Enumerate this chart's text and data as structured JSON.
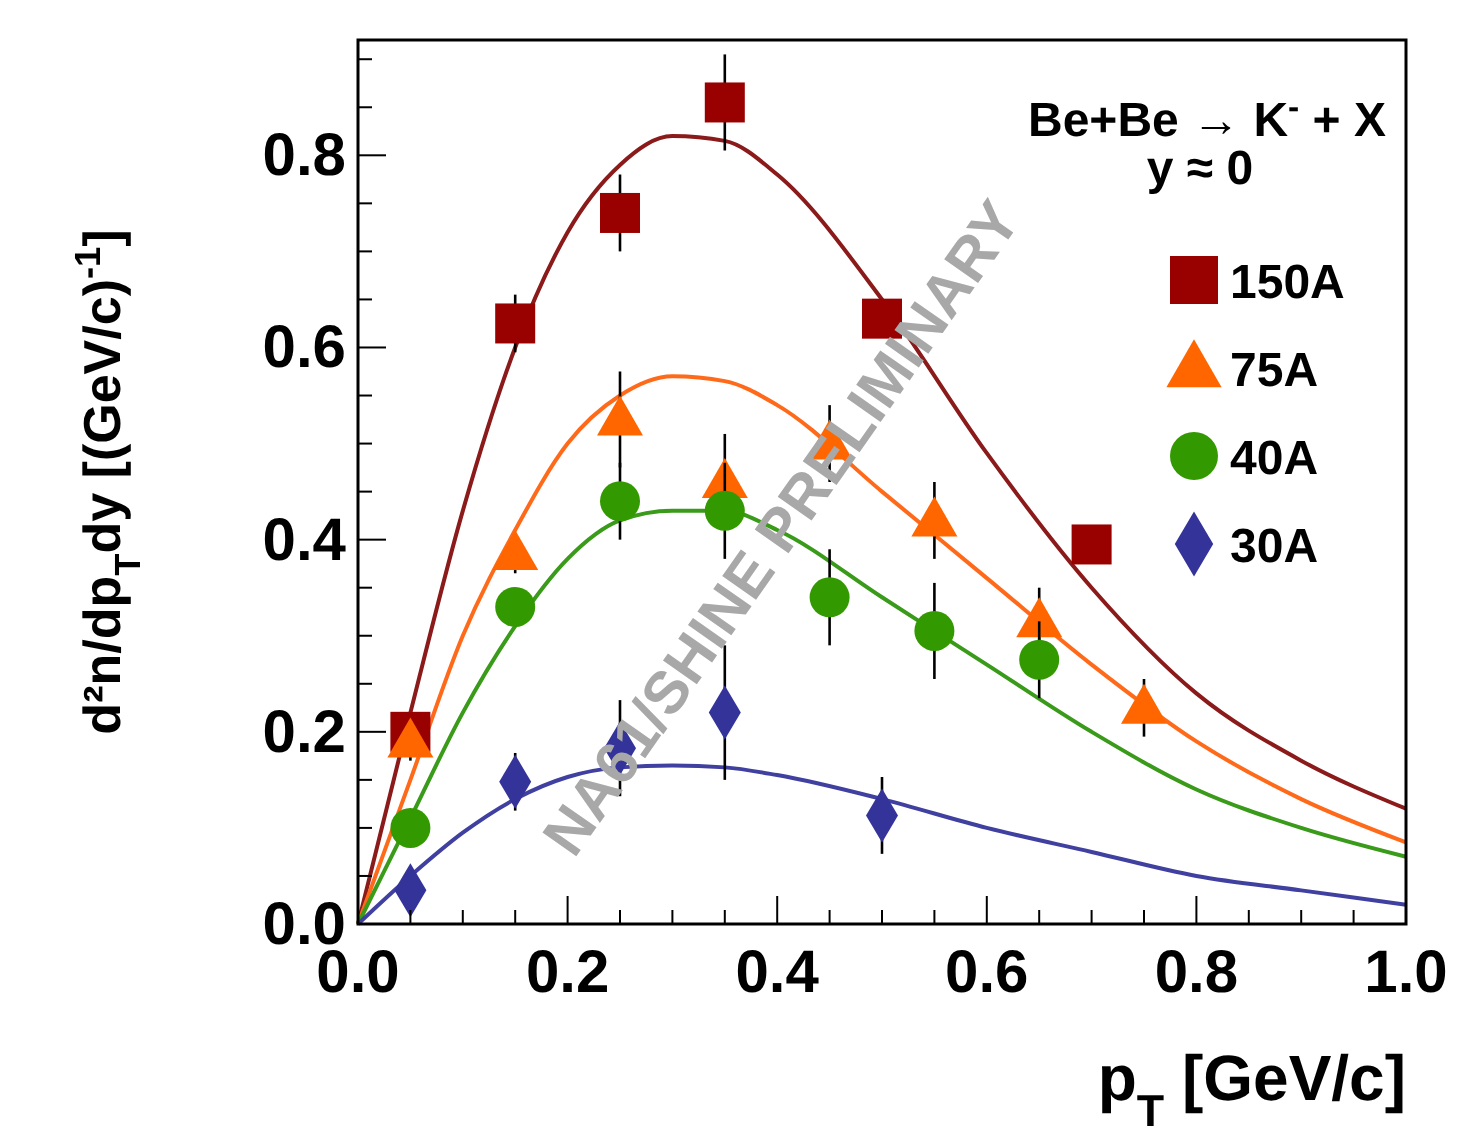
{
  "chart_data": {
    "type": "scatter",
    "xlabel": "p$_{T}$ [GeV/c]",
    "ylabel": "d²n/dp$_{T}$dy [(GeV/c)$^{-1}$]",
    "xlim": [
      0,
      1
    ],
    "ylim": [
      0,
      0.92
    ],
    "xticks": [
      {
        "value": 0,
        "label": "0.0"
      },
      {
        "value": 0.05,
        "label": null
      },
      {
        "value": 0.1,
        "label": null
      },
      {
        "value": 0.15,
        "label": null
      },
      {
        "value": 0.2,
        "label": "0.2"
      },
      {
        "value": 0.25,
        "label": null
      },
      {
        "value": 0.3,
        "label": null
      },
      {
        "value": 0.35,
        "label": null
      },
      {
        "value": 0.4,
        "label": "0.4"
      },
      {
        "value": 0.45,
        "label": null
      },
      {
        "value": 0.5,
        "label": null
      },
      {
        "value": 0.55,
        "label": null
      },
      {
        "value": 0.6,
        "label": "0.6"
      },
      {
        "value": 0.65,
        "label": null
      },
      {
        "value": 0.7,
        "label": null
      },
      {
        "value": 0.75,
        "label": null
      },
      {
        "value": 0.8,
        "label": "0.8"
      },
      {
        "value": 0.85,
        "label": null
      },
      {
        "value": 0.9,
        "label": null
      },
      {
        "value": 0.95,
        "label": null
      },
      {
        "value": 1,
        "label": "1.0"
      }
    ],
    "yticks": [
      {
        "value": 0,
        "label": "0.0"
      },
      {
        "value": 0.05,
        "label": null
      },
      {
        "value": 0.1,
        "label": null
      },
      {
        "value": 0.15,
        "label": null
      },
      {
        "value": 0.2,
        "label": "0.2"
      },
      {
        "value": 0.25,
        "label": null
      },
      {
        "value": 0.3,
        "label": null
      },
      {
        "value": 0.35,
        "label": null
      },
      {
        "value": 0.4,
        "label": "0.4"
      },
      {
        "value": 0.45,
        "label": null
      },
      {
        "value": 0.5,
        "label": null
      },
      {
        "value": 0.55,
        "label": null
      },
      {
        "value": 0.6,
        "label": "0.6"
      },
      {
        "value": 0.65,
        "label": null
      },
      {
        "value": 0.7,
        "label": null
      },
      {
        "value": 0.75,
        "label": null
      },
      {
        "value": 0.8,
        "label": "0.8"
      },
      {
        "value": 0.85,
        "label": null
      },
      {
        "value": 0.9,
        "label": null
      }
    ],
    "grid": false,
    "legend": "top right",
    "annotations": [
      "Be+Be → K$^{-}$ + X",
      "y ≈ 0",
      "NA61/SHINE PRELIMINARY"
    ],
    "series": [
      {
        "type": "line",
        "color": "#8b1a1a",
        "marker": "none",
        "x": [
          0,
          0.05,
          0.1,
          0.15,
          0.2,
          0.25,
          0.3,
          0.35,
          0.4,
          0.5,
          0.6,
          0.7,
          0.8,
          0.9,
          1.0
        ],
        "values": [
          0,
          0.22,
          0.43,
          0.6,
          0.72,
          0.79,
          0.82,
          0.815,
          0.78,
          0.65,
          0.49,
          0.35,
          0.24,
          0.17,
          0.12
        ]
      },
      {
        "type": "line",
        "color": "#ff6a1a",
        "marker": "none",
        "x": [
          0,
          0.05,
          0.1,
          0.15,
          0.2,
          0.25,
          0.3,
          0.35,
          0.4,
          0.5,
          0.6,
          0.7,
          0.8,
          0.9,
          1.0
        ],
        "values": [
          0,
          0.15,
          0.3,
          0.41,
          0.5,
          0.55,
          0.57,
          0.565,
          0.54,
          0.45,
          0.36,
          0.27,
          0.19,
          0.13,
          0.085
        ]
      },
      {
        "type": "line",
        "color": "#3a9a1a",
        "marker": "none",
        "x": [
          0,
          0.05,
          0.1,
          0.15,
          0.2,
          0.25,
          0.3,
          0.35,
          0.4,
          0.5,
          0.6,
          0.7,
          0.8,
          0.9,
          1.0
        ],
        "values": [
          0,
          0.11,
          0.22,
          0.31,
          0.38,
          0.42,
          0.43,
          0.43,
          0.41,
          0.34,
          0.27,
          0.2,
          0.14,
          0.1,
          0.07
        ]
      },
      {
        "type": "line",
        "color": "#4040a0",
        "marker": "none",
        "x": [
          0,
          0.05,
          0.1,
          0.15,
          0.2,
          0.25,
          0.3,
          0.35,
          0.4,
          0.5,
          0.6,
          0.7,
          0.8,
          0.9,
          1.0
        ],
        "values": [
          0,
          0.05,
          0.095,
          0.13,
          0.153,
          0.163,
          0.165,
          0.163,
          0.155,
          0.13,
          0.1,
          0.075,
          0.05,
          0.035,
          0.02
        ]
      },
      {
        "name": "150A",
        "color": "#990000",
        "marker": "square",
        "x": [
          0.05,
          0.15,
          0.25,
          0.35,
          0.5,
          0.7
        ],
        "values": [
          0.2,
          0.625,
          0.74,
          0.855,
          0.63,
          0.395
        ],
        "errors": [
          null,
          0.03,
          0.04,
          0.05,
          null,
          null
        ]
      },
      {
        "name": "75A",
        "color": "#ff6600",
        "marker": "triangle",
        "x": [
          0.05,
          0.15,
          0.25,
          0.35,
          0.45,
          0.55,
          0.65,
          0.75
        ],
        "values": [
          0.19,
          0.385,
          0.525,
          0.46,
          0.5,
          0.42,
          0.315,
          0.225
        ],
        "errors": [
          0.02,
          0.02,
          0.05,
          0.05,
          0.04,
          0.04,
          0.035,
          0.03
        ]
      },
      {
        "name": "40A",
        "color": "#339900",
        "marker": "circle",
        "x": [
          0.05,
          0.15,
          0.25,
          0.35,
          0.45,
          0.55,
          0.65
        ],
        "values": [
          0.1,
          0.33,
          0.44,
          0.43,
          0.34,
          0.305,
          0.275
        ],
        "errors": [
          null,
          null,
          0.04,
          0.05,
          0.05,
          0.05,
          0.04
        ]
      },
      {
        "name": "30A",
        "color": "#333399",
        "marker": "diamond",
        "x": [
          0.05,
          0.15,
          0.25,
          0.35,
          0.5
        ],
        "values": [
          0.035,
          0.148,
          0.183,
          0.22,
          0.113
        ],
        "errors": [
          0.02,
          0.03,
          0.05,
          0.07,
          0.04
        ]
      }
    ]
  }
}
